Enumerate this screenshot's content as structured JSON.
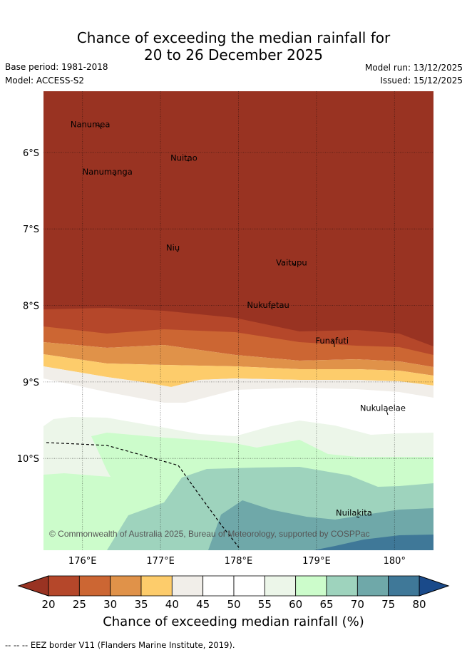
{
  "header": {
    "title_line1": "Chance of exceeding the median rainfall for",
    "title_line2": "20 to 26 December 2025",
    "base_period": "Base period: 1981-2018",
    "model": "Model: ACCESS-S2",
    "model_run": "Model run: 13/12/2025",
    "issued": "Issued: 15/12/2025"
  },
  "map": {
    "lon_range": [
      175.5,
      180.5
    ],
    "lat_range": [
      -11.2,
      -5.2
    ],
    "lon_ticks": [
      176,
      177,
      178,
      179,
      180
    ],
    "lon_labels": [
      "176°E",
      "177°E",
      "178°E",
      "179°E",
      "180°"
    ],
    "lat_ticks": [
      -6,
      -7,
      -8,
      -9,
      -10
    ],
    "lat_labels": [
      "6°S",
      "7°S",
      "8°S",
      "9°S",
      "10°S"
    ],
    "places": [
      {
        "name": "Nanumea",
        "lon": 176.1,
        "lat": -5.67
      },
      {
        "name": "Nuitao",
        "lon": 177.3,
        "lat": -6.11
      },
      {
        "name": "Nanumanga",
        "lon": 176.32,
        "lat": -6.29
      },
      {
        "name": "Niu",
        "lon": 177.16,
        "lat": -7.28
      },
      {
        "name": "Vaitupu",
        "lon": 178.68,
        "lat": -7.48
      },
      {
        "name": "Nukufetau",
        "lon": 178.38,
        "lat": -8.03
      },
      {
        "name": "Funafuti",
        "lon": 179.2,
        "lat": -8.5
      },
      {
        "name": "Nukulaelae",
        "lon": 179.85,
        "lat": -9.38
      },
      {
        "name": "Nuilakita",
        "lon": 179.48,
        "lat": -10.75
      }
    ],
    "copyright": "© Commonwealth of Australia 2025, Bureau of Meteorology, supported by COSPPac"
  },
  "legend": {
    "ticks": [
      "20",
      "25",
      "30",
      "35",
      "40",
      "45",
      "50",
      "55",
      "60",
      "65",
      "70",
      "75",
      "80"
    ],
    "colors": [
      "#b5472a",
      "#cc6633",
      "#e09249",
      "#fdcc6b",
      "#f1eee9",
      "#ffffff",
      "#ffffff",
      "#ecf6e9",
      "#ccfccb",
      "#9ed3bd",
      "#6fa8a9",
      "#3f7898"
    ],
    "low_color": "#993322",
    "high_color": "#1a4a8a",
    "title": "Chance of exceeding median rainfall (%)"
  },
  "footer": "-- -- -- EEZ border V11 (Flanders Marine Institute, 2019)."
}
